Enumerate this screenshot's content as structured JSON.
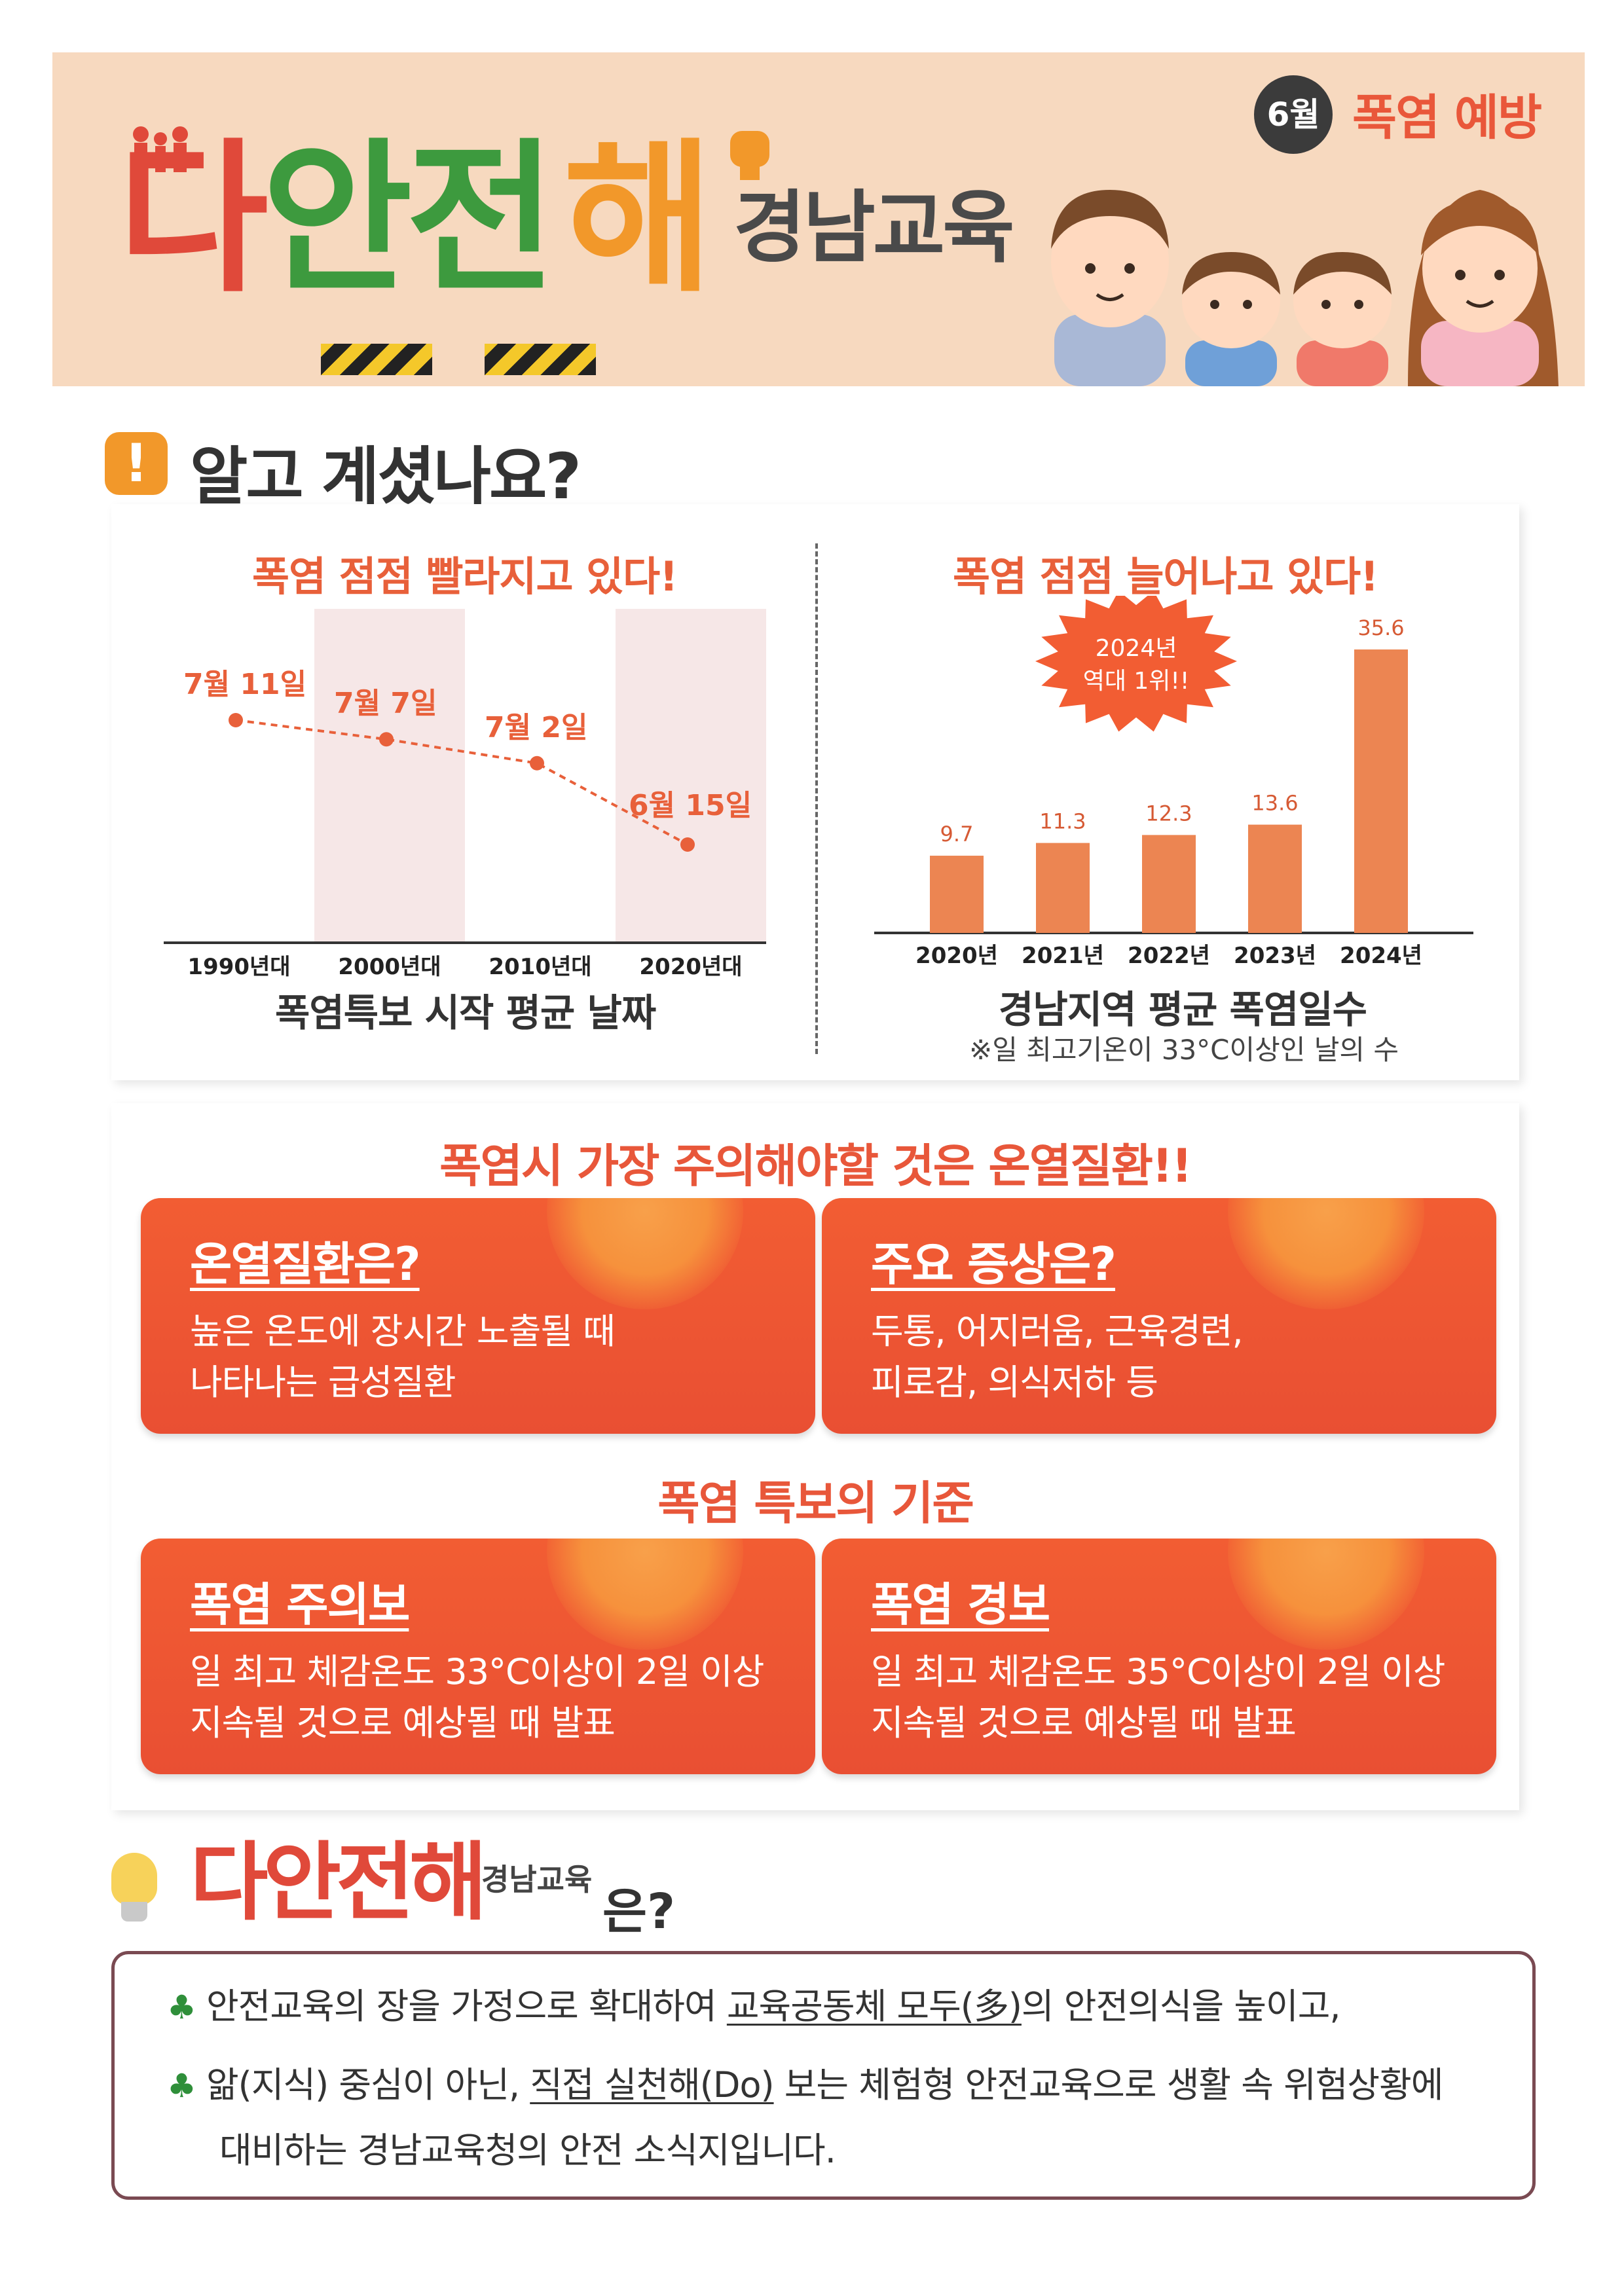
{
  "header": {
    "brand_chars": [
      "다",
      "안",
      "전",
      "해"
    ],
    "brand_sub": "경남교육",
    "month": "6월",
    "topic": "폭염 예방"
  },
  "section": {
    "icon": "exclamation-icon",
    "title": "알고 계셨나요?"
  },
  "chart_left": {
    "title": "폭염 점점 빨라지고 있다!",
    "caption": "폭염특보 시작 평균 날짜"
  },
  "chart_right": {
    "title": "폭염 점점 늘어나고 있다!",
    "caption": "경남지역 평균 폭염일수",
    "note": "※일 최고기온이 33°C이상인 날의 수",
    "burst_line1": "2024년",
    "burst_line2": "역대 1위!!"
  },
  "chart_data": [
    {
      "type": "line",
      "categories": [
        "1990년대",
        "2000년대",
        "2010년대",
        "2020년대"
      ],
      "labels": [
        "7월 11일",
        "7월 7일",
        "7월 2일",
        "6월 15일"
      ],
      "values": [
        "07-11",
        "07-07",
        "07-02",
        "06-15"
      ],
      "xlabel": "폭염특보 시작 평균 날짜",
      "grid": false,
      "colors": {
        "line": "#e8603a",
        "band": "#f6e7e7"
      }
    },
    {
      "type": "bar",
      "categories": [
        "2020년",
        "2021년",
        "2022년",
        "2023년",
        "2024년"
      ],
      "values": [
        9.7,
        11.3,
        12.3,
        13.6,
        35.6
      ],
      "xlabel": "경남지역 평균 폭염일수",
      "ylim": [
        0,
        37
      ],
      "grid": false,
      "colors": {
        "bar": "#ec8552"
      }
    }
  ],
  "illness": {
    "heading": "폭염시 가장 주의해야할 것은 온열질환!!",
    "card1_title": "온열질환은?",
    "card1_line1": "높은 온도에 장시간 노출될 때",
    "card1_line2": "나타나는 급성질환",
    "card2_title": "주요 증상은?",
    "card2_line1": "두통, 어지러움, 근육경련,",
    "card2_line2": "피로감, 의식저하 등"
  },
  "warning": {
    "heading": "폭염 특보의 기준",
    "card1_title": "폭염 주의보",
    "card1_line1": "일 최고 체감온도 33°C이상이 2일 이상",
    "card1_line2": "지속될 것으로 예상될 때 발표",
    "card2_title": "폭염 경보",
    "card2_line1": "일 최고 체감온도 35°C이상이 2일 이상",
    "card2_line2": "지속될 것으로 예상될 때 발표"
  },
  "about": {
    "brand": "다안전해",
    "brand_sub": "경남교육",
    "question": "은?",
    "line1_a": "안전교육의 장을 가정으로 확대하여 ",
    "line1_u": "교육공동체 모두(多)",
    "line1_b": "의 안전의식을 높이고,",
    "line2_a": "앎(지식) 중심이 아닌, ",
    "line2_u": "직접 실천해(Do)",
    "line2_b": " 보는 체험형 안전교육으로 생활 속 위험상황에",
    "line3": "대비하는 경남교육청의 안전 소식지입니다."
  },
  "colors": {
    "header_bg": "#f7d9bf",
    "accent_red": "#e8573a",
    "accent_orange": "#f2982a",
    "brand_green": "#3d9a3e"
  }
}
